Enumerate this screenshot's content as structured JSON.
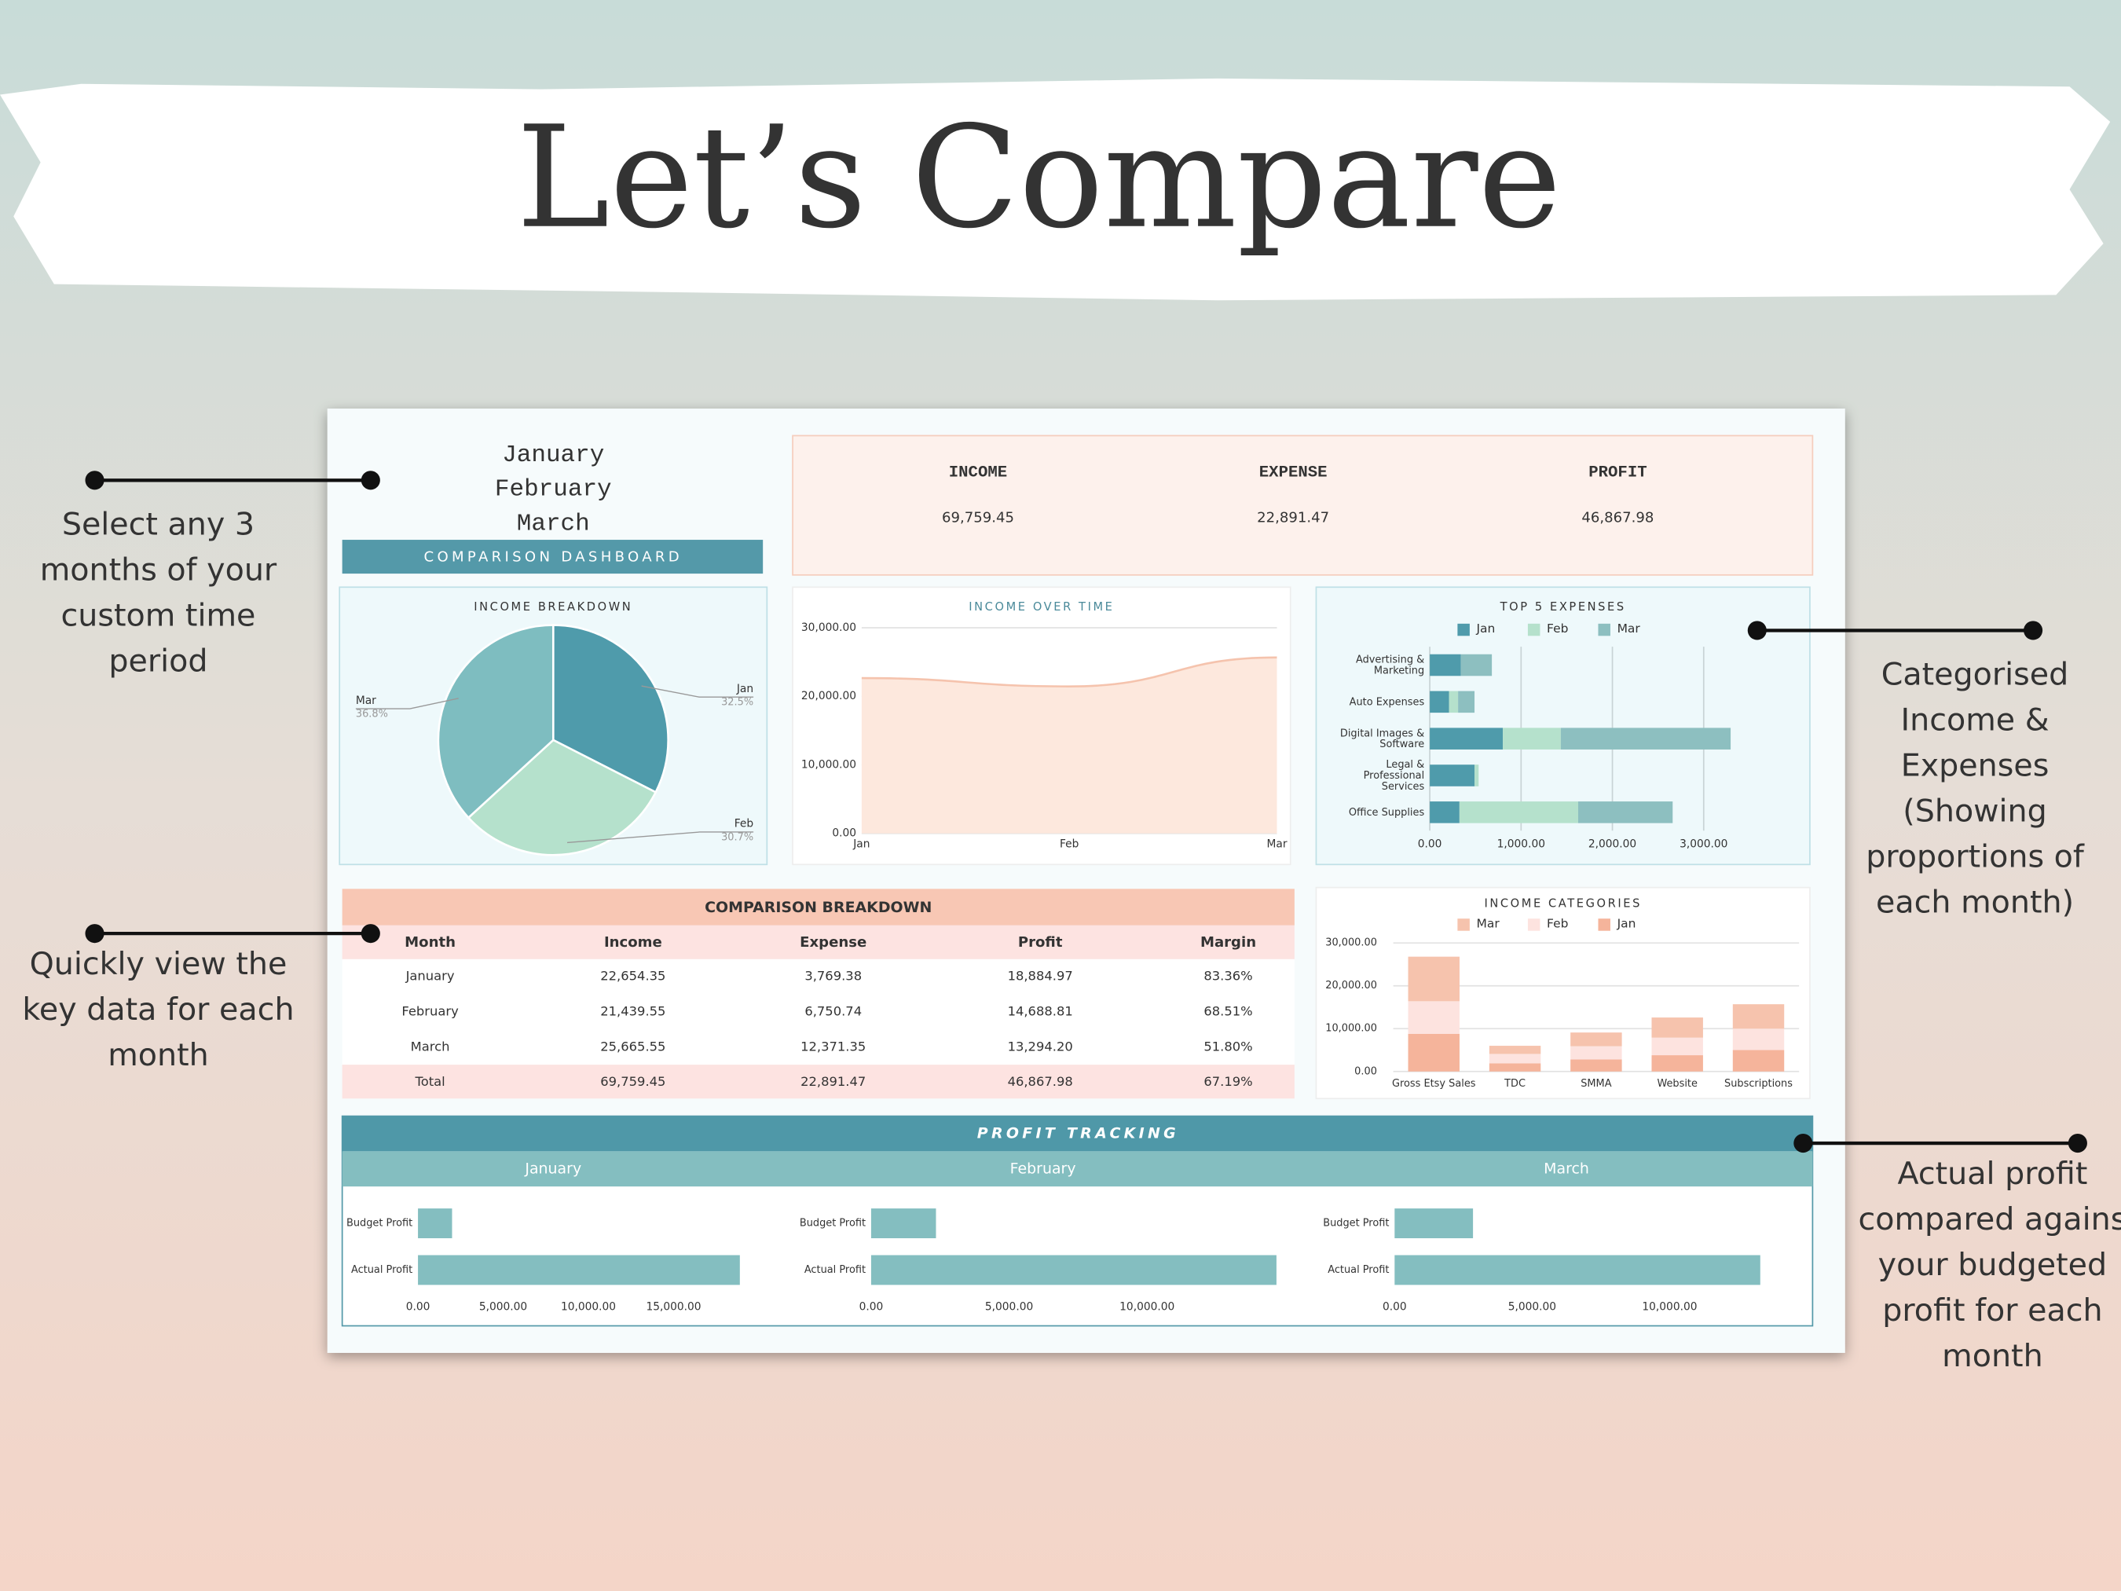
{
  "title": "Let’s Compare",
  "callouts": [
    {
      "lines": [
        "Select any 3",
        "months of your",
        "custom time",
        "period"
      ]
    },
    {
      "lines": [
        "Quickly view the",
        "key data for each",
        "month"
      ]
    },
    {
      "lines": [
        "Categorised",
        "Income &",
        "Expenses",
        "(Showing",
        "proportions of",
        "each month)"
      ]
    },
    {
      "lines": [
        "Actual profit",
        "compared agains",
        "your budgeted",
        "profit for each",
        "month"
      ]
    }
  ],
  "dashboard": {
    "months": [
      "January",
      "February",
      "March"
    ],
    "banner": "COMPARISON DASHBOARD",
    "kpis": [
      {
        "label": "INCOME",
        "value": "69,759.45"
      },
      {
        "label": "EXPENSE",
        "value": "22,891.47"
      },
      {
        "label": "PROFIT",
        "value": "46,867.98"
      }
    ],
    "table": {
      "title": "COMPARISON BREAKDOWN",
      "headers": [
        "Month",
        "Income",
        "Expense",
        "Profit",
        "Margin"
      ],
      "rows": [
        [
          "January",
          "22,654.35",
          "3,769.38",
          "18,884.97",
          "83.36%"
        ],
        [
          "February",
          "21,439.55",
          "6,750.74",
          "14,688.81",
          "68.51%"
        ],
        [
          "March",
          "25,665.55",
          "12,371.35",
          "13,294.20",
          "51.80%"
        ]
      ],
      "total": [
        "Total",
        "69,759.45",
        "22,891.47",
        "46,867.98",
        "67.19%"
      ]
    },
    "profit_title": "PROFIT TRACKING"
  },
  "chart_data": [
    {
      "type": "pie",
      "title": "INCOME BREAKDOWN",
      "categories": [
        "Jan",
        "Feb",
        "Mar"
      ],
      "values": [
        32.5,
        30.7,
        36.8
      ],
      "value_labels": [
        "32.5%",
        "30.7%",
        "36.8%"
      ],
      "colors": [
        "#4f9bab",
        "#b5e1cc",
        "#7ebdc0"
      ]
    },
    {
      "type": "area",
      "title": "INCOME OVER TIME",
      "categories": [
        "Jan",
        "Feb",
        "Mar"
      ],
      "values": [
        22654.35,
        21439.55,
        25665.55
      ],
      "color": "#f5c3ad",
      "ylim": [
        0,
        30000
      ],
      "yticks": [
        {
          "value": 0,
          "label": "0.00"
        },
        {
          "value": 10000,
          "label": "10,000.00"
        },
        {
          "value": 20000,
          "label": "20,000.00"
        },
        {
          "value": 30000,
          "label": "30,000.00"
        }
      ],
      "grid": true
    },
    {
      "type": "hbar",
      "stacked": true,
      "title": "TOP 5 EXPENSES",
      "categories": [
        "Advertising & Marketing",
        "Auto Expenses",
        "Digital Images & Software",
        "Legal & Professional Services",
        "Office Supplies"
      ],
      "series": [
        {
          "name": "Jan",
          "color": "#4f9bab",
          "values": [
            340,
            210,
            800,
            490,
            325
          ]
        },
        {
          "name": "Feb",
          "color": "#b5e1cc",
          "values": [
            0,
            100,
            635,
            45,
            1300
          ]
        },
        {
          "name": "Mar",
          "color": "#8dbfc0",
          "values": [
            340,
            180,
            1860,
            0,
            1035
          ]
        }
      ],
      "xlim": [
        0,
        4000
      ],
      "xticks": [
        {
          "value": 0,
          "label": "0.00"
        },
        {
          "value": 1000,
          "label": "1,000.00"
        },
        {
          "value": 2000,
          "label": "2,000.00"
        },
        {
          "value": 3000,
          "label": "3,000.00"
        }
      ],
      "grid": true
    },
    {
      "type": "bar",
      "stacked": true,
      "title": "INCOME CATEGORIES",
      "categories": [
        "Gross Etsy Sales",
        "TDC",
        "SMMA",
        "Website",
        "Subscriptions"
      ],
      "series": [
        {
          "name": "Mar",
          "color": "#f6c3ad",
          "values": [
            10400,
            1900,
            3200,
            4700,
            5700
          ]
        },
        {
          "name": "Feb",
          "color": "#fde3df",
          "values": [
            7600,
            2200,
            3100,
            4100,
            5000
          ]
        },
        {
          "name": "Jan",
          "color": "#f5b49b",
          "values": [
            8800,
            1900,
            2800,
            3800,
            5000
          ]
        }
      ],
      "ylim": [
        0,
        30000
      ],
      "yticks": [
        {
          "value": 0,
          "label": "0.00"
        },
        {
          "value": 10000,
          "label": "10,000.00"
        },
        {
          "value": 20000,
          "label": "20,000.00"
        },
        {
          "value": 30000,
          "label": "30,000.00"
        }
      ],
      "grid": true
    },
    {
      "type": "hbar",
      "title": "January",
      "categories": [
        "Budget Profit",
        "Actual Profit"
      ],
      "values": [
        2000,
        18884.97
      ],
      "color": "#84bec0",
      "xlim": [
        0,
        20000
      ],
      "xticks": [
        {
          "value": 0,
          "label": "0.00"
        },
        {
          "value": 5000,
          "label": "5,000.00"
        },
        {
          "value": 10000,
          "label": "10,000.00"
        },
        {
          "value": 15000,
          "label": "15,000.00"
        }
      ]
    },
    {
      "type": "hbar",
      "title": "February",
      "categories": [
        "Budget Profit",
        "Actual Profit"
      ],
      "values": [
        2350,
        14688.81
      ],
      "color": "#84bec0",
      "xlim": [
        0,
        15000
      ],
      "xticks": [
        {
          "value": 0,
          "label": "0.00"
        },
        {
          "value": 5000,
          "label": "5,000.00"
        },
        {
          "value": 10000,
          "label": "10,000.00"
        }
      ]
    },
    {
      "type": "hbar",
      "title": "March",
      "categories": [
        "Budget Profit",
        "Actual Profit"
      ],
      "values": [
        2850,
        13294.2
      ],
      "color": "#84bec0",
      "xlim": [
        0,
        15000
      ],
      "xticks": [
        {
          "value": 0,
          "label": "0.00"
        },
        {
          "value": 5000,
          "label": "5,000.00"
        },
        {
          "value": 10000,
          "label": "10,000.00"
        }
      ]
    }
  ]
}
